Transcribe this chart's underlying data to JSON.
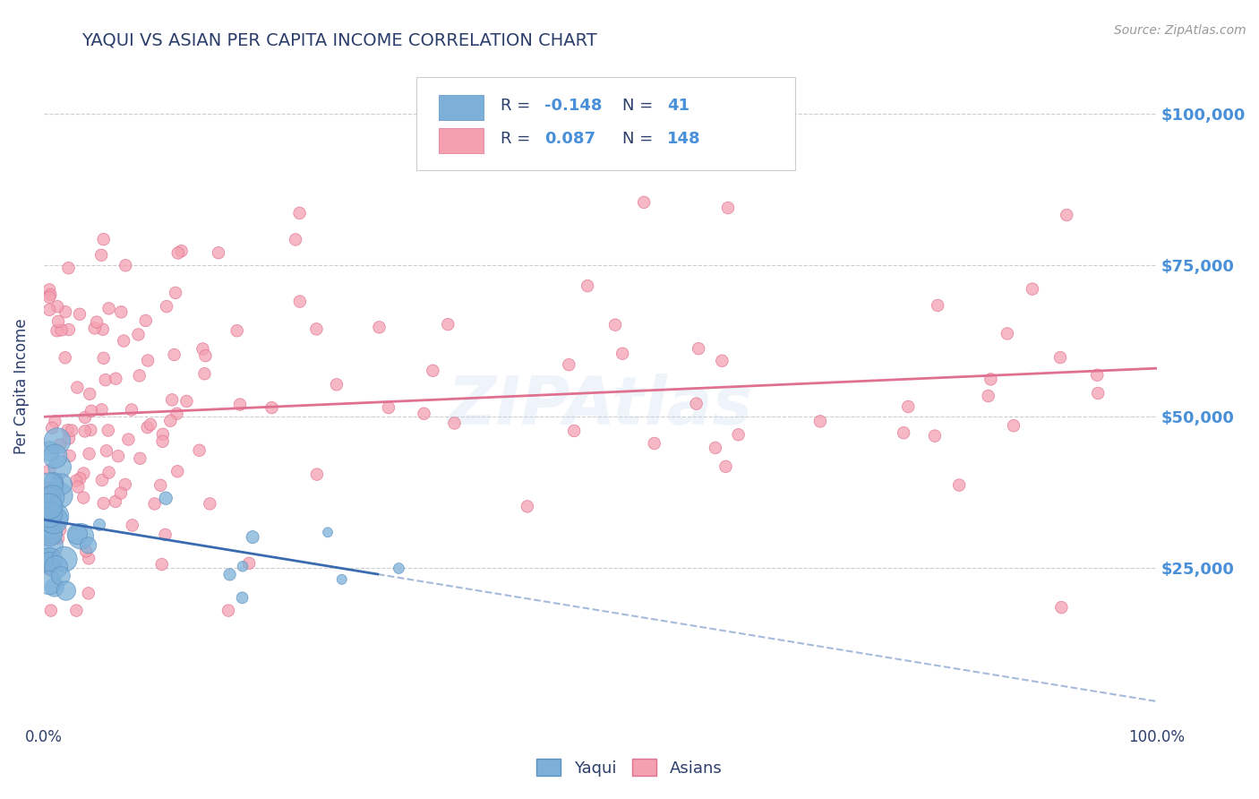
{
  "title": "YAQUI VS ASIAN PER CAPITA INCOME CORRELATION CHART",
  "ylabel": "Per Capita Income",
  "source": "Source: ZipAtlas.com",
  "watermark": "ZIPAtlas",
  "xlim": [
    0,
    1.0
  ],
  "ylim": [
    0,
    110000
  ],
  "title_color": "#2c3e6b",
  "ytick_color": "#4a90d9",
  "grid_color": "#cccccc",
  "bg_color": "#ffffff",
  "yaqui_color": "#7db0d8",
  "yaqui_edge_color": "#5a8fc0",
  "asian_color": "#f4a0b0",
  "asian_edge_color": "#e07090",
  "trend_yaqui_color": "#3a6ab0",
  "trend_asian_color": "#e07090",
  "legend_R1": "-0.148",
  "legend_N1": "41",
  "legend_R2": "0.087",
  "legend_N2": "148",
  "trend_yaqui_intercept": 33000,
  "trend_yaqui_slope": -30000,
  "trend_yaqui_xmax": 0.3,
  "trend_asian_intercept": 50000,
  "trend_asian_slope": 8000
}
